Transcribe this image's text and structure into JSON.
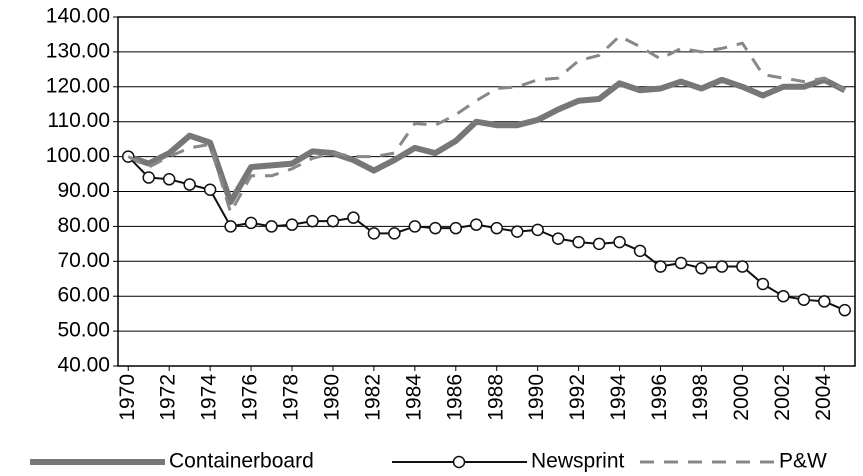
{
  "chart_data": {
    "type": "line",
    "x": [
      1970,
      1971,
      1972,
      1973,
      1974,
      1975,
      1976,
      1977,
      1978,
      1979,
      1980,
      1981,
      1982,
      1983,
      1984,
      1985,
      1986,
      1987,
      1988,
      1989,
      1990,
      1991,
      1992,
      1993,
      1994,
      1995,
      1996,
      1997,
      1998,
      1999,
      2000,
      2001,
      2002,
      2003,
      2004,
      2005
    ],
    "xlim": [
      1969.5,
      2005.5
    ],
    "xticks": [
      1970,
      1972,
      1974,
      1976,
      1978,
      1980,
      1982,
      1984,
      1986,
      1988,
      1990,
      1992,
      1994,
      1996,
      1998,
      2000,
      2002,
      2004
    ],
    "ylim": [
      40,
      140
    ],
    "yticks": [
      {
        "value": 40,
        "label": "40.00"
      },
      {
        "value": 50,
        "label": "50.00"
      },
      {
        "value": 60,
        "label": "60.00"
      },
      {
        "value": 70,
        "label": "70.00"
      },
      {
        "value": 80,
        "label": "80.00"
      },
      {
        "value": 90,
        "label": "90.00"
      },
      {
        "value": 100,
        "label": "100.00"
      },
      {
        "value": 110,
        "label": "110.00"
      },
      {
        "value": 120,
        "label": "120.00"
      },
      {
        "value": 130,
        "label": "130.00"
      },
      {
        "value": 140,
        "label": "140.00"
      }
    ],
    "grid": true,
    "legend": "bottom",
    "series": [
      {
        "name": "Containerboard",
        "color": "#777777",
        "style": "solid",
        "values": [
          100,
          98,
          101,
          106,
          104,
          87,
          97,
          97.5,
          98,
          101.5,
          101,
          99,
          96,
          99,
          102.5,
          101,
          104.5,
          110,
          109,
          109,
          110.5,
          113.5,
          116,
          116.5,
          121,
          119,
          119.5,
          121.5,
          119.5,
          122,
          120,
          117.5,
          120,
          120,
          122,
          119
        ]
      },
      {
        "name": "Newsprint",
        "color": "#111111",
        "style": "solid",
        "marker": "circle",
        "values": [
          100,
          94,
          93.5,
          92,
          90.5,
          80,
          81,
          80,
          80.5,
          81.5,
          81.5,
          82.5,
          78,
          78,
          80,
          79.5,
          79.5,
          80.5,
          79.5,
          78.5,
          79,
          76.5,
          75.5,
          75,
          75.5,
          73,
          68.5,
          69.5,
          68,
          68.5,
          68.5,
          63.5,
          60,
          59,
          58.5,
          56
        ]
      },
      {
        "name": "P&W",
        "color": "#888888",
        "style": "dashed",
        "values": [
          100,
          97,
          100,
          102.5,
          103.5,
          84,
          94.5,
          94.5,
          96.5,
          99.5,
          101,
          100,
          100,
          101,
          109.5,
          109,
          112,
          116,
          119.5,
          120,
          122,
          122.5,
          127.5,
          129,
          134.5,
          131.5,
          128,
          131,
          130,
          131,
          132.5,
          123.5,
          122.5,
          121.5,
          122.5,
          119
        ]
      }
    ]
  }
}
